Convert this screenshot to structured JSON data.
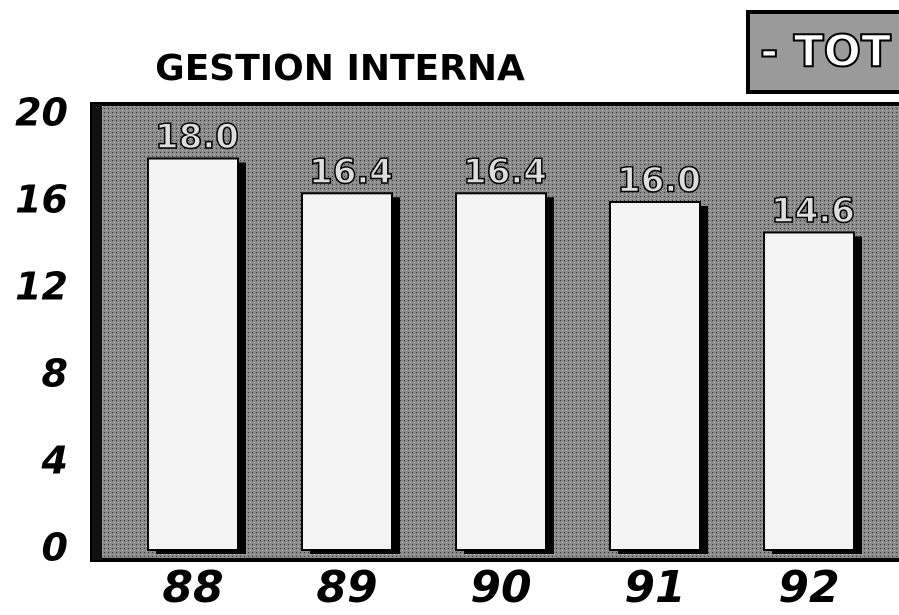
{
  "chart_data": {
    "type": "bar",
    "title": "GESTION INTERNA",
    "subtitle": "- TOT",
    "categories": [
      "88",
      "89",
      "90",
      "91",
      "92"
    ],
    "values": [
      18.0,
      16.4,
      16.4,
      16.0,
      14.6
    ],
    "value_labels": [
      "18.0",
      "16.4",
      "16.4",
      "16.0",
      "14.6"
    ],
    "color": "#f4f4f4",
    "ylim": [
      0,
      20
    ],
    "yticks": [
      0,
      4,
      8,
      12,
      16,
      20
    ],
    "grid": false
  }
}
